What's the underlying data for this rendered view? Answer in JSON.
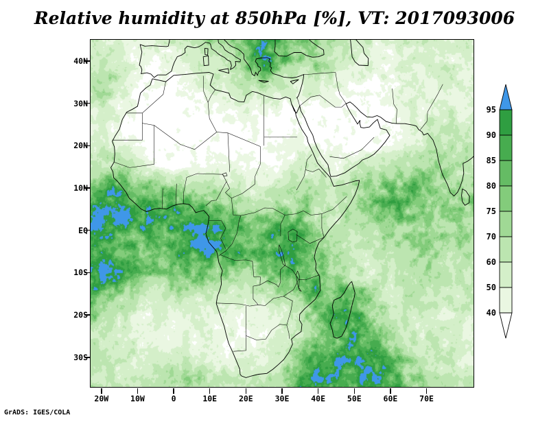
{
  "footer_text": "GrADS: IGES/COLA",
  "chart_data": {
    "type": "heatmap",
    "title": "Relative humidity at 850hPa [%], VT: 2017093006",
    "variable": "Relative humidity",
    "level": "850hPa",
    "units": "%",
    "valid_time": "2017093006",
    "projection": "latlon",
    "region": "Africa and surroundings",
    "lon_range": [
      -23,
      83
    ],
    "lat_range": [
      -37,
      45
    ],
    "x_tick_values": [
      -20,
      -10,
      0,
      10,
      20,
      30,
      40,
      50,
      60,
      70
    ],
    "x_tick_labels": [
      "20W",
      "10W",
      "0",
      "10E",
      "20E",
      "30E",
      "40E",
      "50E",
      "60E",
      "70E"
    ],
    "y_tick_values": [
      40,
      30,
      20,
      10,
      0,
      -10,
      -20,
      -30
    ],
    "y_tick_labels": [
      "40N",
      "30N",
      "20N",
      "10N",
      "EQ",
      "10S",
      "20S",
      "30S"
    ],
    "colorbar": {
      "orientation": "vertical-right",
      "levels": [
        40,
        50,
        60,
        70,
        75,
        80,
        85,
        90,
        95
      ],
      "labels": [
        "95",
        "90",
        "85",
        "80",
        "75",
        "70",
        "60",
        "50",
        "40"
      ],
      "colors": [
        "#ffffff",
        "#eaf7e2",
        "#d4efc9",
        "#bce5b0",
        "#a0d995",
        "#83cc7b",
        "#65bc64",
        "#47ac4f",
        "#2f9e41",
        "#3f97e8"
      ]
    },
    "grid": {
      "lons": [
        -25,
        -20,
        -15,
        -10,
        -5,
        0,
        5,
        10,
        15,
        20,
        25,
        30,
        35,
        40,
        45,
        50,
        55,
        60,
        65,
        70,
        75,
        80
      ],
      "lats": [
        45,
        40,
        35,
        30,
        25,
        20,
        15,
        10,
        5,
        0,
        -5,
        -10,
        -15,
        -20,
        -25,
        -30,
        -35,
        -40
      ],
      "values": [
        [
          60,
          55,
          50,
          45,
          50,
          55,
          60,
          68,
          72,
          82,
          95,
          85,
          75,
          70,
          62,
          58,
          52,
          50,
          55,
          60,
          55,
          50
        ],
        [
          65,
          60,
          55,
          45,
          40,
          45,
          52,
          62,
          66,
          76,
          90,
          80,
          70,
          72,
          60,
          55,
          48,
          45,
          50,
          55,
          52,
          48
        ],
        [
          70,
          72,
          60,
          40,
          35,
          38,
          45,
          55,
          60,
          66,
          72,
          60,
          55,
          60,
          50,
          45,
          40,
          42,
          48,
          52,
          55,
          50
        ],
        [
          55,
          60,
          50,
          35,
          30,
          32,
          35,
          40,
          45,
          50,
          45,
          40,
          45,
          40,
          38,
          35,
          35,
          40,
          45,
          50,
          52,
          48
        ],
        [
          45,
          50,
          45,
          32,
          30,
          30,
          32,
          35,
          35,
          38,
          35,
          35,
          38,
          35,
          32,
          32,
          35,
          38,
          45,
          55,
          60,
          55
        ],
        [
          50,
          55,
          50,
          38,
          32,
          32,
          35,
          35,
          35,
          35,
          35,
          35,
          40,
          42,
          40,
          35,
          38,
          42,
          50,
          60,
          65,
          60
        ],
        [
          60,
          65,
          70,
          55,
          45,
          42,
          40,
          42,
          42,
          40,
          40,
          45,
          55,
          50,
          45,
          55,
          60,
          62,
          65,
          68,
          70,
          65
        ],
        [
          80,
          85,
          88,
          85,
          80,
          75,
          70,
          65,
          60,
          55,
          55,
          60,
          70,
          60,
          55,
          70,
          78,
          80,
          80,
          78,
          75,
          72
        ],
        [
          90,
          95,
          92,
          90,
          92,
          90,
          88,
          85,
          75,
          70,
          70,
          72,
          75,
          65,
          60,
          72,
          80,
          82,
          80,
          78,
          76,
          74
        ],
        [
          92,
          96,
          90,
          85,
          85,
          88,
          92,
          96,
          90,
          85,
          85,
          92,
          85,
          70,
          60,
          65,
          70,
          72,
          72,
          72,
          70,
          70
        ],
        [
          88,
          90,
          85,
          80,
          78,
          80,
          90,
          96,
          88,
          82,
          85,
          90,
          88,
          75,
          65,
          60,
          62,
          65,
          68,
          68,
          66,
          65
        ],
        [
          95,
          96,
          90,
          80,
          75,
          78,
          82,
          80,
          72,
          70,
          75,
          85,
          88,
          80,
          72,
          60,
          55,
          60,
          65,
          68,
          66,
          64
        ],
        [
          90,
          85,
          75,
          65,
          60,
          62,
          65,
          60,
          55,
          55,
          60,
          70,
          80,
          85,
          80,
          80,
          70,
          60,
          60,
          62,
          60,
          58
        ],
        [
          75,
          70,
          60,
          50,
          46,
          48,
          55,
          50,
          45,
          45,
          50,
          55,
          65,
          75,
          85,
          88,
          75,
          60,
          55,
          55,
          55,
          52
        ],
        [
          65,
          60,
          55,
          48,
          45,
          46,
          48,
          46,
          42,
          40,
          45,
          50,
          60,
          70,
          80,
          92,
          85,
          70,
          60,
          55,
          52,
          50
        ],
        [
          60,
          58,
          55,
          52,
          55,
          58,
          55,
          50,
          45,
          45,
          50,
          62,
          78,
          88,
          95,
          90,
          92,
          80,
          68,
          60,
          55,
          52
        ],
        [
          62,
          60,
          58,
          60,
          62,
          65,
          68,
          65,
          60,
          58,
          62,
          70,
          85,
          95,
          90,
          85,
          95,
          88,
          75,
          65,
          60,
          58
        ],
        [
          65,
          63,
          62,
          65,
          68,
          72,
          75,
          72,
          68,
          65,
          70,
          78,
          90,
          92,
          85,
          80,
          90,
          92,
          80,
          70,
          65,
          62
        ]
      ]
    }
  }
}
